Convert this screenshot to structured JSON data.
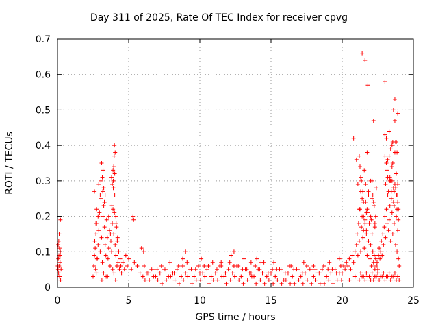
{
  "chart_data": {
    "type": "scatter",
    "title": "Day 311 of 2025, Rate Of TEC Index for receiver cpvg",
    "xlabel": "GPS time / hours",
    "ylabel": "ROTI / TECUs",
    "xlim": [
      0,
      25
    ],
    "ylim": [
      0,
      0.7
    ],
    "xticks": [
      0,
      5,
      10,
      15,
      20,
      25
    ],
    "yticks": [
      0,
      0.1,
      0.2,
      0.3,
      0.4,
      0.5,
      0.6,
      0.7
    ],
    "ytick_labels": [
      "0",
      "0.1",
      "0.2",
      "0.3",
      "0.4",
      "0.5",
      "0.6",
      "0.7"
    ],
    "grid": true,
    "marker": "+",
    "color": "#ff0000",
    "series": [
      {
        "name": "ROTI",
        "x": [
          0.02,
          0.05,
          0.08,
          0.1,
          0.12,
          0.15,
          0.18,
          0.2,
          0.22,
          0.25,
          0.06,
          0.09,
          0.14,
          0.17,
          0.21,
          0.04,
          0.11,
          0.19,
          2.5,
          2.55,
          2.6,
          2.62,
          2.65,
          2.7,
          2.72,
          2.75,
          2.8,
          2.85,
          2.9,
          2.95,
          3.0,
          3.05,
          3.1,
          3.15,
          3.2,
          3.25,
          3.3,
          3.35,
          3.4,
          3.45,
          3.5,
          3.55,
          3.6,
          3.65,
          3.7,
          3.75,
          3.8,
          3.85,
          3.9,
          3.95,
          4.0,
          4.05,
          4.1,
          4.15,
          4.2,
          4.25,
          4.3,
          4.35,
          4.4,
          4.45,
          4.5,
          4.6,
          4.7,
          4.8,
          4.9,
          5.0,
          5.2,
          5.4,
          5.6,
          5.8,
          3.05,
          3.18,
          3.3,
          3.6,
          3.72,
          3.82,
          3.92,
          4.02,
          4.12,
          4.22,
          3.12,
          3.24,
          3.52,
          3.88,
          4.08,
          2.68,
          2.78,
          3.42,
          3.96,
          4.18,
          2.6,
          2.75,
          2.9,
          3.0,
          3.1,
          3.2,
          3.3,
          3.8,
          3.9,
          3.95,
          4.0,
          4.05,
          4.1,
          3.85,
          3.92,
          4.02,
          3.98,
          5.3,
          5.35,
          5.9,
          6.05,
          3.15,
          3.25,
          3.35,
          2.7,
          2.85,
          6.0,
          6.3,
          6.6,
          6.9,
          7.2,
          7.5,
          7.8,
          8.1,
          8.4,
          8.7,
          9.0,
          9.3,
          9.6,
          9.9,
          10.2,
          10.5,
          10.8,
          11.1,
          11.4,
          11.7,
          12.0,
          12.3,
          12.6,
          12.9,
          13.2,
          13.5,
          13.8,
          14.1,
          14.4,
          14.7,
          15.0,
          15.3,
          15.6,
          15.9,
          16.2,
          16.5,
          16.8,
          17.1,
          17.4,
          17.7,
          18.0,
          18.3,
          18.6,
          18.9,
          19.2,
          19.5,
          19.8,
          6.15,
          6.45,
          6.75,
          7.05,
          7.35,
          7.65,
          7.95,
          8.25,
          8.55,
          8.85,
          9.15,
          9.45,
          9.75,
          10.05,
          10.35,
          10.65,
          10.95,
          11.25,
          11.55,
          11.85,
          12.15,
          12.45,
          12.75,
          13.05,
          13.35,
          13.65,
          13.95,
          14.25,
          14.55,
          14.85,
          15.15,
          15.45,
          15.75,
          16.05,
          16.35,
          16.65,
          16.95,
          17.25,
          17.55,
          17.85,
          18.15,
          18.45,
          18.75,
          19.05,
          19.35,
          19.65,
          19.95,
          6.1,
          6.7,
          7.3,
          7.9,
          8.5,
          9.1,
          9.7,
          10.3,
          10.9,
          11.5,
          12.1,
          12.7,
          13.3,
          13.9,
          14.5,
          15.1,
          15.7,
          16.3,
          16.9,
          17.5,
          18.1,
          18.7,
          19.3,
          19.9,
          6.4,
          7.0,
          7.6,
          8.2,
          8.8,
          9.4,
          10.0,
          10.6,
          11.2,
          11.8,
          12.4,
          13.0,
          13.6,
          14.2,
          14.8,
          15.4,
          16.0,
          16.6,
          17.2,
          17.8,
          18.4,
          19.0,
          19.6,
          8.8,
          9.0,
          10.1,
          11.5,
          12.2,
          12.4,
          13.1,
          13.6,
          14.0,
          14.3,
          15.2,
          16.4,
          17.3,
          18.0,
          19.1,
          19.8,
          20.0,
          20.1,
          20.2,
          20.3,
          20.4,
          20.5,
          20.6,
          20.7,
          20.8,
          20.9,
          21.0,
          21.05,
          21.1,
          21.15,
          21.2,
          21.25,
          21.3,
          21.35,
          21.4,
          21.45,
          21.5,
          21.55,
          21.6,
          21.65,
          21.7,
          21.75,
          21.8,
          21.85,
          21.9,
          21.95,
          22.0,
          22.05,
          22.1,
          22.15,
          22.2,
          22.25,
          22.3,
          22.35,
          22.4,
          22.45,
          22.5,
          22.55,
          22.6,
          22.65,
          22.7,
          22.75,
          22.8,
          22.85,
          22.9,
          22.95,
          23.0,
          23.05,
          23.1,
          23.15,
          23.2,
          23.25,
          23.3,
          23.35,
          23.4,
          23.45,
          23.5,
          23.55,
          23.6,
          23.65,
          23.7,
          23.75,
          23.8,
          23.85,
          23.9,
          23.95,
          24.0,
          20.5,
          20.9,
          21.2,
          21.4,
          21.6,
          21.8,
          22.0,
          22.2,
          22.4,
          22.6,
          22.8,
          23.0,
          23.2,
          23.4,
          23.6,
          23.8,
          24.0,
          21.3,
          21.5,
          21.7,
          21.9,
          22.1,
          22.3,
          22.5,
          22.7,
          22.9,
          23.1,
          23.3,
          23.5,
          23.7,
          23.9,
          21.0,
          21.2,
          21.35,
          21.45,
          21.55,
          21.65,
          21.75,
          21.85,
          22.0,
          22.1,
          22.25,
          22.4,
          23.0,
          23.1,
          23.2,
          23.3,
          23.4,
          23.5,
          23.6,
          23.7,
          23.8,
          23.85,
          23.9,
          23.95,
          21.1,
          21.3,
          21.5,
          21.7,
          21.85,
          22.05,
          22.2,
          22.35,
          23.05,
          23.15,
          23.25,
          23.35,
          23.45,
          23.55,
          23.65,
          23.75,
          23.85,
          23.95,
          20.8,
          21.2,
          21.4,
          21.6,
          21.75,
          22.0,
          22.15,
          22.3,
          23.0,
          23.2,
          23.35,
          23.5,
          23.65,
          23.8,
          23.9,
          21.4,
          21.6,
          21.8,
          22.2,
          23.1,
          23.3,
          23.4,
          23.5,
          23.55,
          23.6,
          23.7,
          23.75,
          23.9,
          23.7,
          23.8,
          22.1,
          22.3,
          21.5,
          21.3,
          21.25,
          21.7,
          23.0,
          23.85
        ],
        "y": [
          0.06,
          0.12,
          0.04,
          0.09,
          0.15,
          0.03,
          0.07,
          0.1,
          0.02,
          0.05,
          0.08,
          0.13,
          0.11,
          0.03,
          0.19,
          0.05,
          0.06,
          0.09,
          0.03,
          0.06,
          0.09,
          0.13,
          0.11,
          0.15,
          0.04,
          0.18,
          0.08,
          0.12,
          0.16,
          0.21,
          0.1,
          0.25,
          0.14,
          0.07,
          0.2,
          0.23,
          0.17,
          0.12,
          0.09,
          0.19,
          0.14,
          0.08,
          0.11,
          0.16,
          0.06,
          0.13,
          0.1,
          0.18,
          0.22,
          0.15,
          0.21,
          0.12,
          0.09,
          0.17,
          0.13,
          0.07,
          0.1,
          0.05,
          0.08,
          0.06,
          0.04,
          0.07,
          0.05,
          0.09,
          0.06,
          0.08,
          0.05,
          0.07,
          0.06,
          0.04,
          0.3,
          0.27,
          0.24,
          0.2,
          0.15,
          0.23,
          0.28,
          0.26,
          0.18,
          0.14,
          0.02,
          0.04,
          0.03,
          0.05,
          0.02,
          0.05,
          0.08,
          0.03,
          0.04,
          0.06,
          0.27,
          0.22,
          0.29,
          0.26,
          0.35,
          0.33,
          0.24,
          0.31,
          0.33,
          0.34,
          0.4,
          0.38,
          0.2,
          0.29,
          0.3,
          0.32,
          0.37,
          0.2,
          0.19,
          0.11,
          0.1,
          0.31,
          0.28,
          0.26,
          0.18,
          0.2,
          0.03,
          0.04,
          0.05,
          0.03,
          0.04,
          0.05,
          0.03,
          0.04,
          0.05,
          0.03,
          0.04,
          0.05,
          0.03,
          0.06,
          0.04,
          0.05,
          0.03,
          0.04,
          0.06,
          0.03,
          0.05,
          0.04,
          0.06,
          0.03,
          0.05,
          0.04,
          0.03,
          0.05,
          0.04,
          0.03,
          0.04,
          0.03,
          0.05,
          0.02,
          0.04,
          0.03,
          0.05,
          0.03,
          0.04,
          0.05,
          0.03,
          0.04,
          0.05,
          0.03,
          0.04,
          0.05,
          0.04,
          0.02,
          0.02,
          0.03,
          0.02,
          0.01,
          0.02,
          0.03,
          0.02,
          0.01,
          0.02,
          0.03,
          0.01,
          0.02,
          0.02,
          0.03,
          0.01,
          0.02,
          0.02,
          0.03,
          0.01,
          0.02,
          0.03,
          0.02,
          0.01,
          0.02,
          0.03,
          0.01,
          0.02,
          0.01,
          0.02,
          0.01,
          0.02,
          0.01,
          0.02,
          0.01,
          0.01,
          0.02,
          0.01,
          0.02,
          0.01,
          0.02,
          0.01,
          0.01,
          0.02,
          0.01,
          0.02,
          0.02,
          0.06,
          0.05,
          0.06,
          0.07,
          0.06,
          0.07,
          0.05,
          0.06,
          0.07,
          0.06,
          0.07,
          0.06,
          0.05,
          0.06,
          0.07,
          0.05,
          0.05,
          0.06,
          0.05,
          0.06,
          0.05,
          0.06,
          0.05,
          0.06,
          0.04,
          0.05,
          0.05,
          0.04,
          0.06,
          0.05,
          0.04,
          0.06,
          0.05,
          0.04,
          0.06,
          0.05,
          0.04,
          0.05,
          0.04,
          0.05,
          0.04,
          0.05,
          0.04,
          0.05,
          0.04,
          0.05,
          0.04,
          0.08,
          0.1,
          0.08,
          0.07,
          0.09,
          0.1,
          0.08,
          0.07,
          0.08,
          0.07,
          0.07,
          0.06,
          0.07,
          0.06,
          0.07,
          0.08,
          0.04,
          0.06,
          0.05,
          0.07,
          0.06,
          0.08,
          0.05,
          0.09,
          0.07,
          0.1,
          0.12,
          0.15,
          0.09,
          0.18,
          0.13,
          0.22,
          0.1,
          0.17,
          0.25,
          0.14,
          0.2,
          0.11,
          0.19,
          0.24,
          0.16,
          0.09,
          0.21,
          0.13,
          0.18,
          0.08,
          0.12,
          0.06,
          0.15,
          0.1,
          0.07,
          0.09,
          0.05,
          0.08,
          0.06,
          0.07,
          0.05,
          0.09,
          0.11,
          0.08,
          0.1,
          0.13,
          0.09,
          0.15,
          0.12,
          0.17,
          0.2,
          0.14,
          0.22,
          0.18,
          0.26,
          0.16,
          0.19,
          0.23,
          0.13,
          0.27,
          0.21,
          0.15,
          0.24,
          0.18,
          0.29,
          0.12,
          0.2,
          0.1,
          0.16,
          0.08,
          0.06,
          0.02,
          0.03,
          0.02,
          0.03,
          0.02,
          0.03,
          0.02,
          0.02,
          0.03,
          0.02,
          0.03,
          0.02,
          0.03,
          0.02,
          0.03,
          0.02,
          0.02,
          0.04,
          0.03,
          0.04,
          0.03,
          0.04,
          0.03,
          0.04,
          0.03,
          0.04,
          0.03,
          0.04,
          0.03,
          0.04,
          0.03,
          0.36,
          0.37,
          0.3,
          0.27,
          0.33,
          0.29,
          0.38,
          0.26,
          0.3,
          0.25,
          0.23,
          0.28,
          0.43,
          0.35,
          0.31,
          0.37,
          0.3,
          0.34,
          0.28,
          0.38,
          0.32,
          0.26,
          0.29,
          0.22,
          0.29,
          0.31,
          0.24,
          0.21,
          0.27,
          0.19,
          0.24,
          0.2,
          0.29,
          0.33,
          0.27,
          0.3,
          0.25,
          0.35,
          0.23,
          0.28,
          0.22,
          0.19,
          0.42,
          0.22,
          0.2,
          0.18,
          0.22,
          0.2,
          0.26,
          0.18,
          0.37,
          0.36,
          0.31,
          0.3,
          0.27,
          0.26,
          0.24,
          0.66,
          0.64,
          0.57,
          0.47,
          0.42,
          0.44,
          0.39,
          0.4,
          0.41,
          0.5,
          0.53,
          0.41,
          0.49,
          0.47,
          0.41,
          0.3,
          0.17,
          0.16,
          0.27,
          0.34,
          0.15,
          0.58,
          0.38
        ]
      }
    ]
  }
}
